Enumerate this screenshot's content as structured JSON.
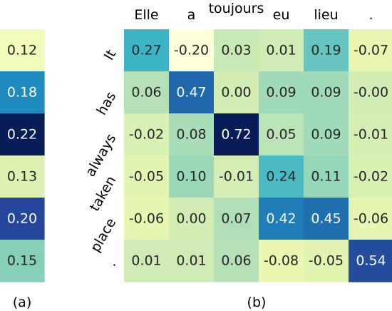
{
  "chart_data": [
    {
      "type": "heatmap",
      "caption": "(a)",
      "rows": 6,
      "cols": 1,
      "values": [
        [
          0.12
        ],
        [
          0.18
        ],
        [
          0.22
        ],
        [
          0.13
        ],
        [
          0.2
        ],
        [
          0.15
        ]
      ],
      "color_range": [
        0.11,
        0.22
      ],
      "colormap": "YlGnBu",
      "grid": false,
      "colorbar": false
    },
    {
      "type": "heatmap",
      "caption": "(b)",
      "x_tick_labels": [
        "Elle",
        "a",
        "toujours",
        "eu",
        "lieu",
        "."
      ],
      "y_tick_labels": [
        "It",
        "has",
        "always",
        "taken",
        "place",
        "."
      ],
      "values": [
        [
          0.27,
          -0.2,
          0.03,
          0.01,
          0.19,
          -0.07
        ],
        [
          0.06,
          0.47,
          0.0,
          0.09,
          0.09,
          -0.0
        ],
        [
          -0.02,
          0.08,
          0.72,
          0.05,
          0.09,
          -0.01
        ],
        [
          -0.05,
          0.1,
          -0.01,
          0.24,
          0.11,
          -0.02
        ],
        [
          -0.06,
          0.0,
          0.07,
          0.42,
          0.45,
          -0.06
        ],
        [
          0.01,
          0.01,
          0.06,
          -0.08,
          -0.05,
          0.54
        ]
      ],
      "color_range": [
        -0.2,
        0.72
      ],
      "colormap": "YlGnBu",
      "grid": false,
      "colorbar": false
    }
  ]
}
